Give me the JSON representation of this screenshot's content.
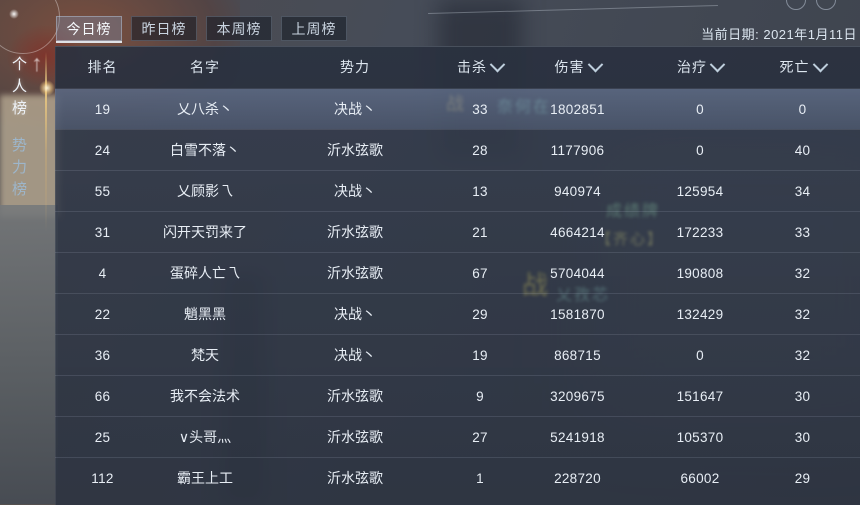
{
  "date_label": "当前日期: 2021年1月11日",
  "tabs": [
    {
      "label": "今日榜",
      "active": true
    },
    {
      "label": "昨日榜",
      "active": false
    },
    {
      "label": "本周榜",
      "active": false
    },
    {
      "label": "上周榜",
      "active": false
    }
  ],
  "sidebar": {
    "items": [
      {
        "label": "个人榜",
        "active": true
      },
      {
        "label": "势力榜",
        "active": false
      }
    ]
  },
  "table": {
    "columns": [
      {
        "key": "rank",
        "label": "排名",
        "sortable": false
      },
      {
        "key": "name",
        "label": "名字",
        "sortable": false
      },
      {
        "key": "faction",
        "label": "势力",
        "sortable": false
      },
      {
        "key": "kills",
        "label": "击杀",
        "sortable": true
      },
      {
        "key": "damage",
        "label": "伤害",
        "sortable": true
      },
      {
        "key": "healing",
        "label": "治疗",
        "sortable": true
      },
      {
        "key": "deaths",
        "label": "死亡",
        "sortable": true
      }
    ],
    "rows": [
      {
        "rank": "19",
        "name": "乂八杀丶",
        "faction": "决战丶",
        "kills": "33",
        "damage": "1802851",
        "healing": "0",
        "deaths": "0",
        "highlighted": true
      },
      {
        "rank": "24",
        "name": "白雪不落丶",
        "faction": "沂水弦歌",
        "kills": "28",
        "damage": "1177906",
        "healing": "0",
        "deaths": "40",
        "highlighted": false
      },
      {
        "rank": "55",
        "name": "乂顾影乁",
        "faction": "决战丶",
        "kills": "13",
        "damage": "940974",
        "healing": "125954",
        "deaths": "34",
        "highlighted": false
      },
      {
        "rank": "31",
        "name": "闪开天罚来了",
        "faction": "沂水弦歌",
        "kills": "21",
        "damage": "4664214",
        "healing": "172233",
        "deaths": "33",
        "highlighted": false
      },
      {
        "rank": "4",
        "name": "蛋碎人亡乁",
        "faction": "沂水弦歌",
        "kills": "67",
        "damage": "5704044",
        "healing": "190808",
        "deaths": "32",
        "highlighted": false
      },
      {
        "rank": "22",
        "name": "魈黑黑",
        "faction": "决战丶",
        "kills": "29",
        "damage": "1581870",
        "healing": "132429",
        "deaths": "32",
        "highlighted": false
      },
      {
        "rank": "36",
        "name": "梵天",
        "faction": "决战丶",
        "kills": "19",
        "damage": "868715",
        "healing": "0",
        "deaths": "32",
        "highlighted": false
      },
      {
        "rank": "66",
        "name": "我不会法术",
        "faction": "沂水弦歌",
        "kills": "9",
        "damage": "3209675",
        "healing": "151647",
        "deaths": "30",
        "highlighted": false
      },
      {
        "rank": "25",
        "name": "∨头哥灬",
        "faction": "沂水弦歌",
        "kills": "27",
        "damage": "5241918",
        "healing": "105370",
        "deaths": "30",
        "highlighted": false
      },
      {
        "rank": "112",
        "name": "霸王上工",
        "faction": "沂水弦歌",
        "kills": "1",
        "damage": "228720",
        "healing": "66002",
        "deaths": "29",
        "highlighted": false
      }
    ]
  },
  "background_fragments": [
    "战",
    "奈何在",
    "成绩牌",
    "【齐心】",
    "战",
    "乂孜芯"
  ],
  "icons": {
    "sort_chevron": "chevron-down-icon",
    "scene_arrow": "↑"
  },
  "colors": {
    "panel_bg": "#343c4c",
    "row_highlight": "#5a6884",
    "active_tab_underline": "#ebf3fa",
    "gold_accent": "#f0cd82",
    "text_primary": "#e8eef5",
    "sidebar_inactive": "#9db6cb"
  }
}
